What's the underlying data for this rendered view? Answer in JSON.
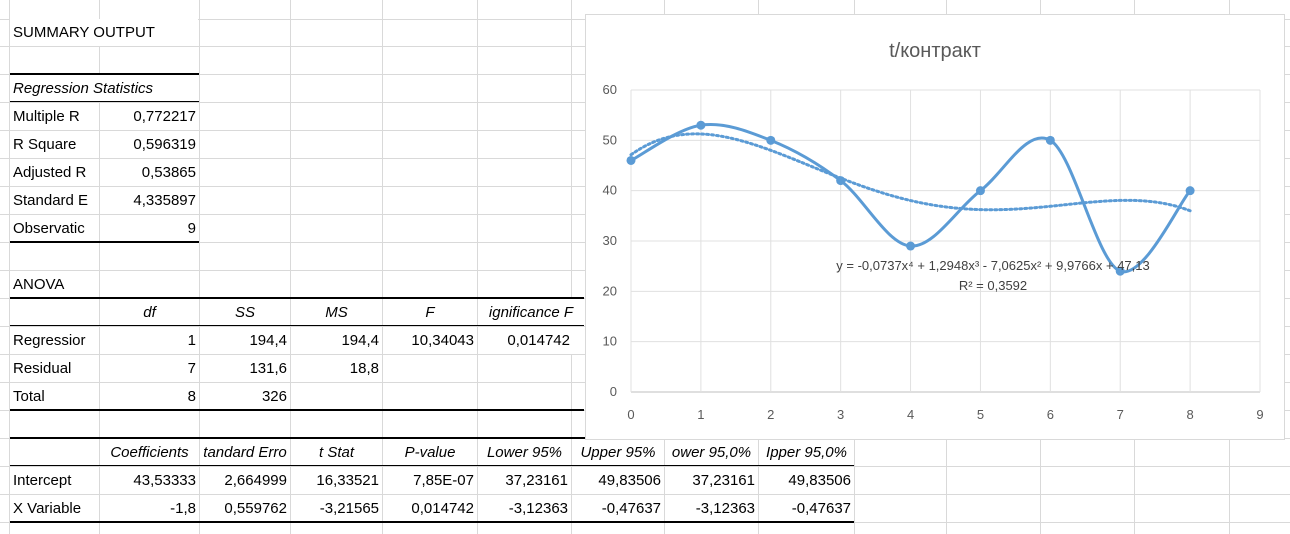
{
  "summary": {
    "title": "SUMMARY OUTPUT",
    "regression_header": "Regression Statistics",
    "stats": [
      {
        "label": "Multiple R",
        "value": "0,772217"
      },
      {
        "label": "R Square",
        "value": "0,596319"
      },
      {
        "label": "Adjusted R",
        "value": "0,53865"
      },
      {
        "label": "Standard E",
        "value": "4,335897"
      },
      {
        "label": "Observatic",
        "value": "9"
      }
    ]
  },
  "anova": {
    "title": "ANOVA",
    "headers": [
      "df",
      "SS",
      "MS",
      "F",
      "ignificance F"
    ],
    "rows": [
      {
        "label": "Regressior",
        "df": "1",
        "ss": "194,4",
        "ms": "194,4",
        "f": "10,34043",
        "sig": "0,014742"
      },
      {
        "label": "Residual",
        "df": "7",
        "ss": "131,6",
        "ms": "18,8",
        "f": "",
        "sig": ""
      },
      {
        "label": "Total",
        "df": "8",
        "ss": "326",
        "ms": "",
        "f": "",
        "sig": ""
      }
    ]
  },
  "coefficients": {
    "headers": [
      "Coefficients",
      "tandard Erro",
      "t Stat",
      "P-value",
      "Lower 95%",
      "Upper 95%",
      "ower 95,0%",
      "Ipper 95,0%"
    ],
    "rows": [
      {
        "label": "Intercept",
        "values": [
          "43,53333",
          "2,664999",
          "16,33521",
          "7,85E-07",
          "37,23161",
          "49,83506",
          "37,23161",
          "49,83506"
        ]
      },
      {
        "label": "X Variable",
        "values": [
          "-1,8",
          "0,559762",
          "-3,21565",
          "0,014742",
          "-3,12363",
          "-0,47637",
          "-3,12363",
          "-0,47637"
        ]
      }
    ]
  },
  "chart_data": {
    "type": "scatter",
    "title": "t/контракт",
    "xlabel": "",
    "ylabel": "",
    "x": [
      0,
      1,
      2,
      3,
      4,
      5,
      6,
      7,
      8
    ],
    "series": [
      {
        "values": [
          46,
          53,
          50,
          42,
          29,
          40,
          50,
          24,
          40
        ],
        "color": "#5b9bd5",
        "style": "smooth-line-markers"
      }
    ],
    "trendline": {
      "type": "polynomial",
      "order": 4,
      "coefficients": [
        -0.0737,
        1.2948,
        -7.0625,
        9.9766,
        47.13
      ],
      "equation_label": "y = -0,0737x⁴ + 1,2948x³ - 7,0625x² + 9,9766x + 47,13",
      "r2_label": "R² = 0,3592",
      "style": "dotted"
    },
    "xlim": [
      0,
      9
    ],
    "ylim": [
      0,
      60
    ],
    "xticks": [
      "0",
      "1",
      "2",
      "3",
      "4",
      "5",
      "6",
      "7",
      "8",
      "9"
    ],
    "yticks": [
      "0",
      "10",
      "20",
      "30",
      "40",
      "50",
      "60"
    ],
    "grid": true,
    "legend": "none"
  }
}
